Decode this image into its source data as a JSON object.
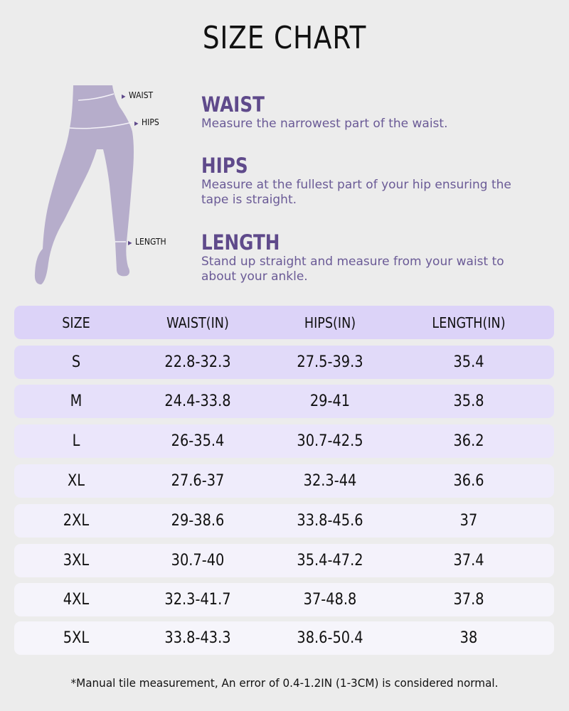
{
  "title": "SIZE CHART",
  "figure_labels": {
    "waist": "WAIST",
    "hips": "HIPS",
    "length": "LENGTH"
  },
  "sections": [
    {
      "heading": "WAIST",
      "text": "Measure the narrowest part of the waist."
    },
    {
      "heading": "HIPS",
      "text": "Measure at the fullest part of your hip ensuring the tape is straight."
    },
    {
      "heading": "LENGTH",
      "text": "Stand up straight and measure from your waist to about your ankle."
    }
  ],
  "colors": {
    "accent": "#5f4a8b",
    "figure": "#b6adcb",
    "header_row": "#dcd3f8",
    "background": "#ececec"
  },
  "table": {
    "headers": [
      "SIZE",
      "WAIST(IN)",
      "HIPS(IN)",
      "LENGTH(IN)"
    ],
    "rows": [
      [
        "S",
        "22.8-32.3",
        "27.5-39.3",
        "35.4"
      ],
      [
        "M",
        "24.4-33.8",
        "29-41",
        "35.8"
      ],
      [
        "L",
        "26-35.4",
        "30.7-42.5",
        "36.2"
      ],
      [
        "XL",
        "27.6-37",
        "32.3-44",
        "36.6"
      ],
      [
        "2XL",
        "29-38.6",
        "33.8-45.6",
        "37"
      ],
      [
        "3XL",
        "30.7-40",
        "35.4-47.2",
        "37.4"
      ],
      [
        "4XL",
        "32.3-41.7",
        "37-48.8",
        "37.8"
      ],
      [
        "5XL",
        "33.8-43.3",
        "38.6-50.4",
        "38"
      ]
    ]
  },
  "note": "*Manual tile measurement, An error of 0.4-1.2IN (1-3CM) is considered normal."
}
